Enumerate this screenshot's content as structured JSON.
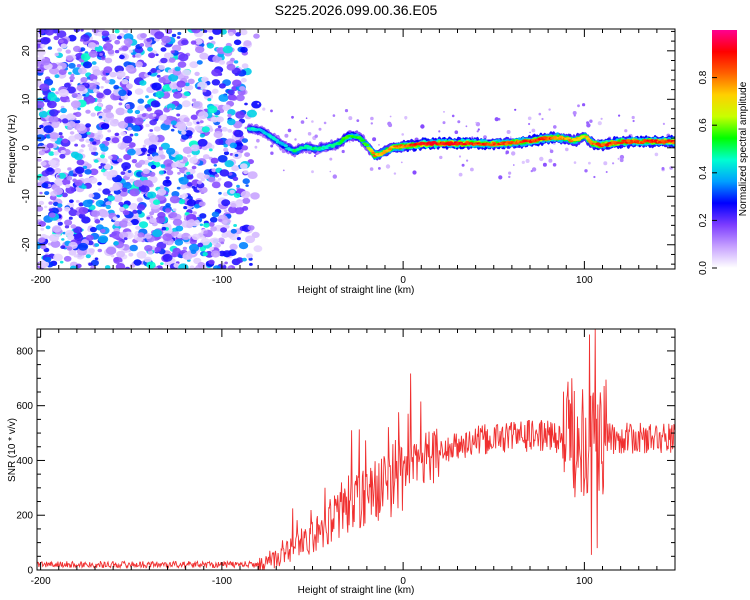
{
  "title": "S225.2026.099.00.36.E05",
  "chart_data": [
    {
      "type": "heatmap",
      "name": "spectrogram",
      "xlabel": "Height of straight line (km)",
      "ylabel": "Frequency (Hz)",
      "xlim": [
        -202,
        150
      ],
      "ylim": [
        -25,
        24.5
      ],
      "xticks": [
        -200,
        -100,
        0,
        100
      ],
      "yticks": [
        -20,
        -10,
        0,
        10,
        20
      ],
      "colorbar": {
        "label": "Normalized spectral amplitude",
        "range": [
          0,
          1
        ],
        "ticks": [
          0.0,
          0.2,
          0.4,
          0.6,
          0.8
        ],
        "colors": [
          "#ffffff",
          "#c6a0ff",
          "#7c3cff",
          "#0000ff",
          "#00a0ff",
          "#00ffd0",
          "#00ff00",
          "#c8ff00",
          "#ffd000",
          "#ff6000",
          "#ff0000",
          "#ff0090"
        ]
      },
      "noise_region_x": [
        -202,
        -80
      ],
      "track": {
        "x": [
          -85,
          -78,
          -72,
          -66,
          -60,
          -54,
          -48,
          -42,
          -36,
          -30,
          -24,
          -20,
          -16,
          -12,
          -6,
          0,
          5,
          10,
          20,
          30,
          40,
          50,
          60,
          70,
          80,
          85,
          90,
          95,
          100,
          105,
          110,
          120,
          130,
          140,
          150
        ],
        "freq": [
          4.0,
          3.5,
          2.0,
          0.5,
          -0.8,
          0.2,
          -0.3,
          0.2,
          0.8,
          2.5,
          2.2,
          0.5,
          -1.5,
          -1.2,
          0.0,
          0.3,
          0.5,
          0.8,
          0.9,
          0.9,
          0.9,
          0.8,
          1.0,
          1.4,
          2.0,
          2.2,
          1.8,
          1.5,
          2.5,
          0.8,
          0.6,
          1.2,
          1.3,
          1.3,
          1.3
        ],
        "amplitude": [
          0.5,
          0.45,
          0.5,
          0.45,
          0.55,
          0.5,
          0.55,
          0.5,
          0.55,
          0.65,
          0.6,
          0.6,
          0.9,
          0.8,
          0.85,
          0.9,
          0.95,
          1.0,
          1.0,
          1.0,
          0.95,
          0.95,
          0.9,
          0.95,
          0.95,
          0.9,
          0.85,
          0.85,
          0.8,
          0.9,
          0.95,
          0.95,
          0.95,
          0.95,
          0.95
        ]
      }
    },
    {
      "type": "line",
      "name": "snr",
      "xlabel": "Height of straight line (km)",
      "ylabel": "SNR (10 * v/v)",
      "xlim": [
        -202,
        150
      ],
      "ylim": [
        0,
        880
      ],
      "xticks": [
        -200,
        -100,
        0,
        100
      ],
      "yticks": [
        0,
        200,
        400,
        600,
        800
      ],
      "color": "#f03030",
      "envelope": {
        "x": [
          -202,
          -80,
          -75,
          -70,
          -60,
          -50,
          -40,
          -30,
          -20,
          -10,
          0,
          10,
          20,
          30,
          40,
          50,
          60,
          70,
          80,
          90,
          95,
          100,
          105,
          108,
          112,
          120,
          130,
          140,
          150
        ],
        "y": [
          20,
          20,
          25,
          40,
          80,
          120,
          180,
          230,
          270,
          310,
          360,
          400,
          430,
          450,
          470,
          480,
          490,
          490,
          490,
          480,
          480,
          480,
          480,
          480,
          480,
          480,
          480,
          480,
          480
        ]
      },
      "notable_spikes": [
        {
          "x": -61,
          "y": 225
        },
        {
          "x": -43,
          "y": 300
        },
        {
          "x": -34,
          "y": 320
        },
        {
          "x": 93,
          "y": 700
        },
        {
          "x": 99,
          "y": 660
        },
        {
          "x": 103,
          "y": 860
        },
        {
          "x": 104,
          "y": 55
        },
        {
          "x": 106,
          "y": 880
        },
        {
          "x": 107,
          "y": 80
        }
      ]
    }
  ]
}
